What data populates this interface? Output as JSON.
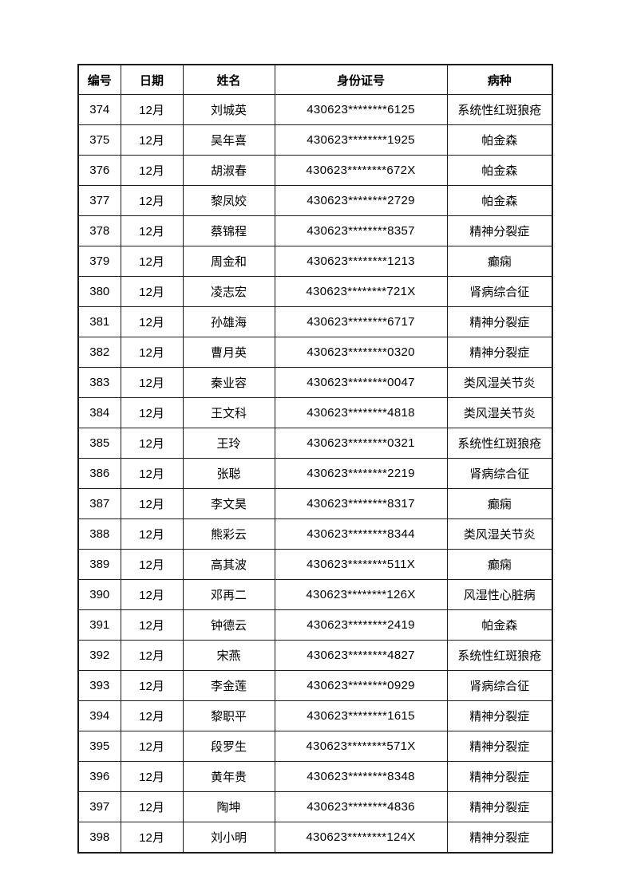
{
  "table": {
    "headers": {
      "number": "编号",
      "date": "日期",
      "name": "姓名",
      "id": "身份证号",
      "disease": "病种"
    },
    "rows": [
      [
        "374",
        "12月",
        "刘城英",
        "430623********6125",
        "系统性红斑狼疮"
      ],
      [
        "375",
        "12月",
        "吴年喜",
        "430623********1925",
        "帕金森"
      ],
      [
        "376",
        "12月",
        "胡淑春",
        "430623********672X",
        "帕金森"
      ],
      [
        "377",
        "12月",
        "黎凤姣",
        "430623********2729",
        "帕金森"
      ],
      [
        "378",
        "12月",
        "蔡锦程",
        "430623********8357",
        "精神分裂症"
      ],
      [
        "379",
        "12月",
        "周金和",
        "430623********1213",
        "癫痫"
      ],
      [
        "380",
        "12月",
        "凌志宏",
        "430623********721X",
        "肾病综合征"
      ],
      [
        "381",
        "12月",
        "孙雄海",
        "430623********6717",
        "精神分裂症"
      ],
      [
        "382",
        "12月",
        "曹月英",
        "430623********0320",
        "精神分裂症"
      ],
      [
        "383",
        "12月",
        "秦业容",
        "430623********0047",
        "类风湿关节炎"
      ],
      [
        "384",
        "12月",
        "王文科",
        "430623********4818",
        "类风湿关节炎"
      ],
      [
        "385",
        "12月",
        "王玲",
        "430623********0321",
        "系统性红斑狼疮"
      ],
      [
        "386",
        "12月",
        "张聪",
        "430623********2219",
        "肾病综合征"
      ],
      [
        "387",
        "12月",
        "李文昊",
        "430623********8317",
        "癫痫"
      ],
      [
        "388",
        "12月",
        "熊彩云",
        "430623********8344",
        "类风湿关节炎"
      ],
      [
        "389",
        "12月",
        "高其波",
        "430623********511X",
        "癫痫"
      ],
      [
        "390",
        "12月",
        "邓再二",
        "430623********126X",
        "风湿性心脏病"
      ],
      [
        "391",
        "12月",
        "钟德云",
        "430623********2419",
        "帕金森"
      ],
      [
        "392",
        "12月",
        "宋燕",
        "430623********4827",
        "系统性红斑狼疮"
      ],
      [
        "393",
        "12月",
        "李金莲",
        "430623********0929",
        "肾病综合征"
      ],
      [
        "394",
        "12月",
        "黎职平",
        "430623********1615",
        "精神分裂症"
      ],
      [
        "395",
        "12月",
        "段罗生",
        "430623********571X",
        "精神分裂症"
      ],
      [
        "396",
        "12月",
        "黄年贵",
        "430623********8348",
        "精神分裂症"
      ],
      [
        "397",
        "12月",
        "陶坤",
        "430623********4836",
        "精神分裂症"
      ],
      [
        "398",
        "12月",
        "刘小明",
        "430623********124X",
        "精神分裂症"
      ]
    ],
    "colors": {
      "border": "#1c1c1c",
      "text": "#000000",
      "page_background": "#ffffff"
    }
  }
}
